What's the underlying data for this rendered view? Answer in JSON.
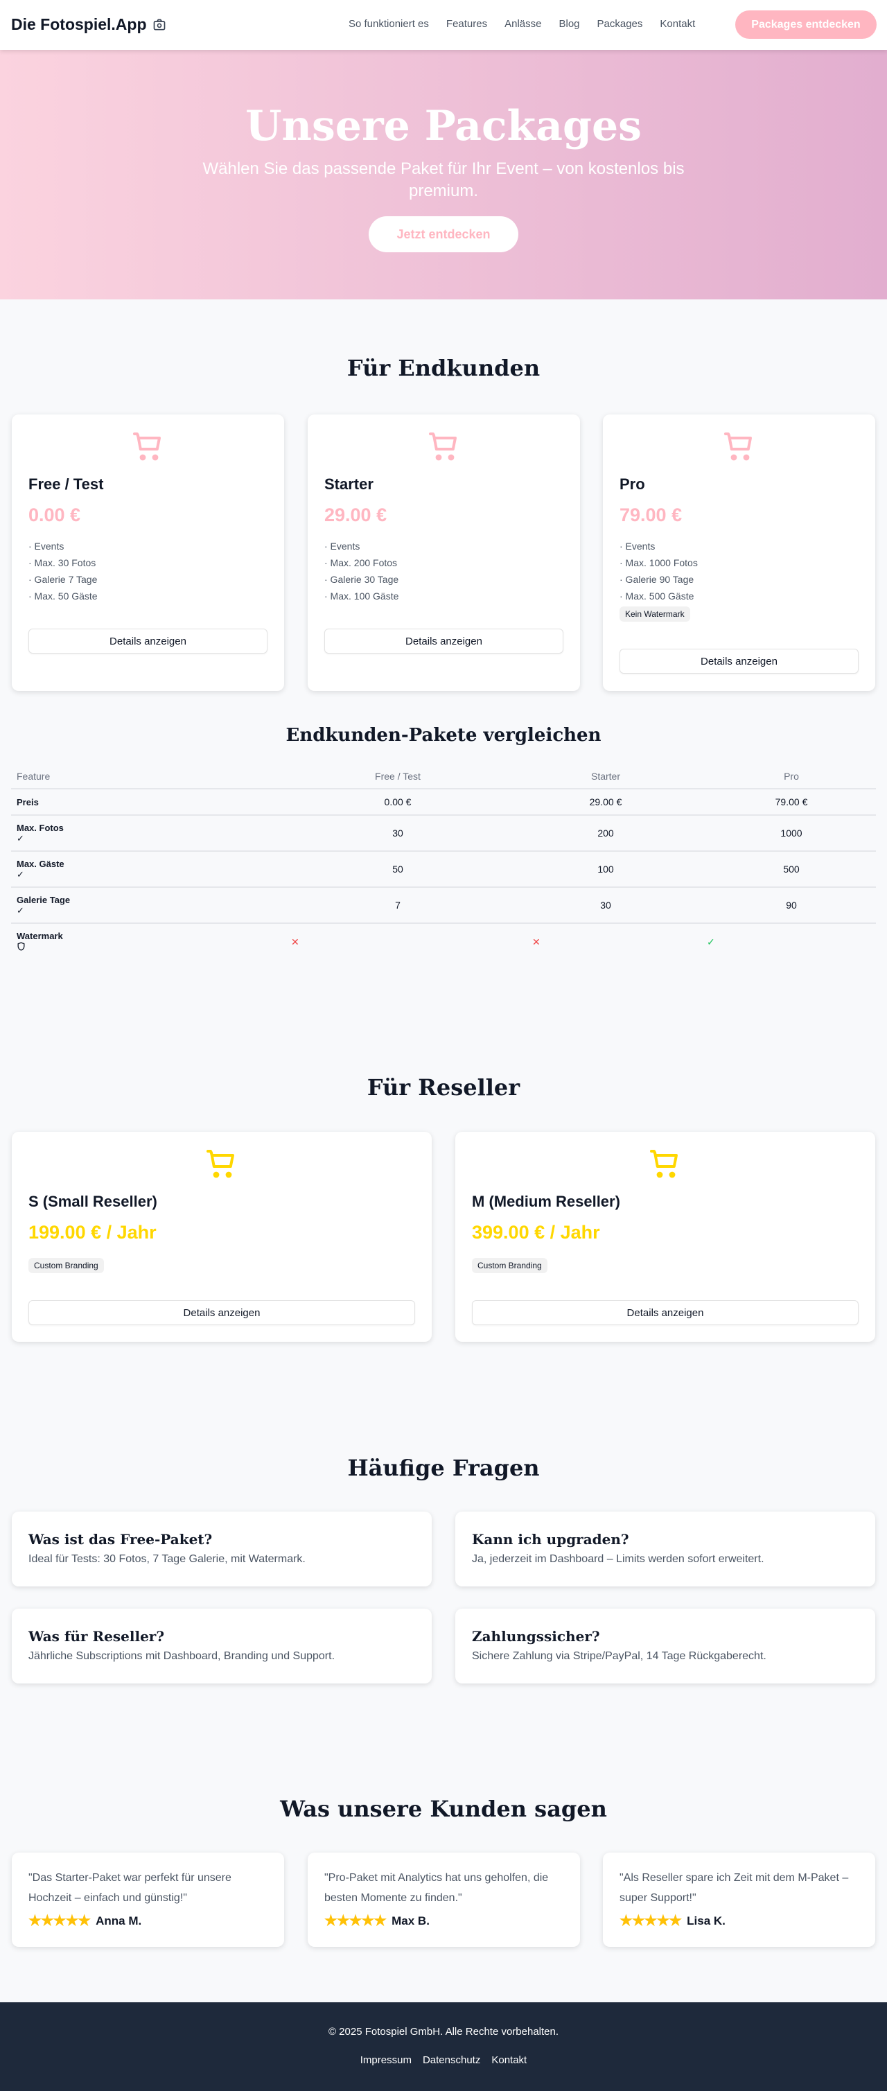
{
  "header": {
    "logo": "Die Fotospiel.App",
    "nav": [
      "So funktioniert es",
      "Features",
      "Anlässe",
      "Blog",
      "Packages",
      "Kontakt"
    ],
    "cta": "Packages entdecken"
  },
  "hero": {
    "title": "Unsere Packages",
    "subtitle": "Wählen Sie das passende Paket für Ihr Event – von kostenlos bis premium.",
    "cta": "Jetzt entdecken"
  },
  "colors": {
    "accent": "#ffb6c1",
    "reseller": "#ffd700",
    "footer": "#1e293b"
  },
  "endkunden": {
    "title": "Für Endkunden",
    "details_label": "Details anzeigen",
    "packages": [
      {
        "name": "Free / Test",
        "price": "0.00 €",
        "features": [
          "· Events",
          "· Max. 30 Fotos",
          "· Galerie 7 Tage",
          "· Max. 50 Gäste"
        ]
      },
      {
        "name": "Starter",
        "price": "29.00 €",
        "features": [
          "· Events",
          "· Max. 200 Fotos",
          "· Galerie 30 Tage",
          "· Max. 100 Gäste"
        ]
      },
      {
        "name": "Pro",
        "price": "79.00 €",
        "features": [
          "· Events",
          "· Max. 1000 Fotos",
          "· Galerie 90 Tage",
          "· Max. 500 Gäste"
        ],
        "badge": "Kein Watermark"
      }
    ]
  },
  "compare": {
    "title": "Endkunden-Pakete vergleichen",
    "headers": [
      "Feature",
      "Free / Test",
      "Starter",
      "Pro"
    ],
    "rows": [
      {
        "label": "Preis",
        "values": [
          "0.00 €",
          "29.00 €",
          "79.00 €"
        ]
      },
      {
        "label": "Max. Fotos",
        "icon": "check-icon",
        "values": [
          "30",
          "200",
          "1000"
        ]
      },
      {
        "label": "Max. Gäste",
        "icon": "check-icon",
        "values": [
          "50",
          "100",
          "500"
        ]
      },
      {
        "label": "Galerie Tage",
        "icon": "check-icon",
        "values": [
          "7",
          "30",
          "90"
        ]
      },
      {
        "label": "Watermark",
        "icon": "shield-icon",
        "values": [
          "✕",
          "✕",
          "✓"
        ]
      }
    ]
  },
  "reseller": {
    "title": "Für Reseller",
    "details_label": "Details anzeigen",
    "packages": [
      {
        "name": "S (Small Reseller)",
        "price": "199.00 € / Jahr",
        "badge": "Custom Branding"
      },
      {
        "name": "M (Medium Reseller)",
        "price": "399.00 € / Jahr",
        "badge": "Custom Branding"
      }
    ]
  },
  "faq": {
    "title": "Häufige Fragen",
    "items": [
      {
        "q": "Was ist das Free-Paket?",
        "a": "Ideal für Tests: 30 Fotos, 7 Tage Galerie, mit Watermark."
      },
      {
        "q": "Kann ich upgraden?",
        "a": "Ja, jederzeit im Dashboard – Limits werden sofort erweitert."
      },
      {
        "q": "Was für Reseller?",
        "a": "Jährliche Subscriptions mit Dashboard, Branding und Support."
      },
      {
        "q": "Zahlungssicher?",
        "a": "Sichere Zahlung via Stripe/PayPal, 14 Tage Rückgaberecht."
      }
    ]
  },
  "testimonials": {
    "title": "Was unsere Kunden sagen",
    "items": [
      {
        "quote": "\"Das Starter-Paket war perfekt für unsere Hochzeit – einfach und günstig!\"",
        "name": "Anna M.",
        "rating": 5
      },
      {
        "quote": "\"Pro-Paket mit Analytics hat uns geholfen, die besten Momente zu finden.\"",
        "name": "Max B.",
        "rating": 5
      },
      {
        "quote": "\"Als Reseller spare ich Zeit mit dem M-Paket – super Support!\"",
        "name": "Lisa K.",
        "rating": 5
      }
    ]
  },
  "footer": {
    "copyright": "© 2025 Fotospiel GmbH. Alle Rechte vorbehalten.",
    "links": [
      "Impressum",
      "Datenschutz",
      "Kontakt"
    ]
  }
}
